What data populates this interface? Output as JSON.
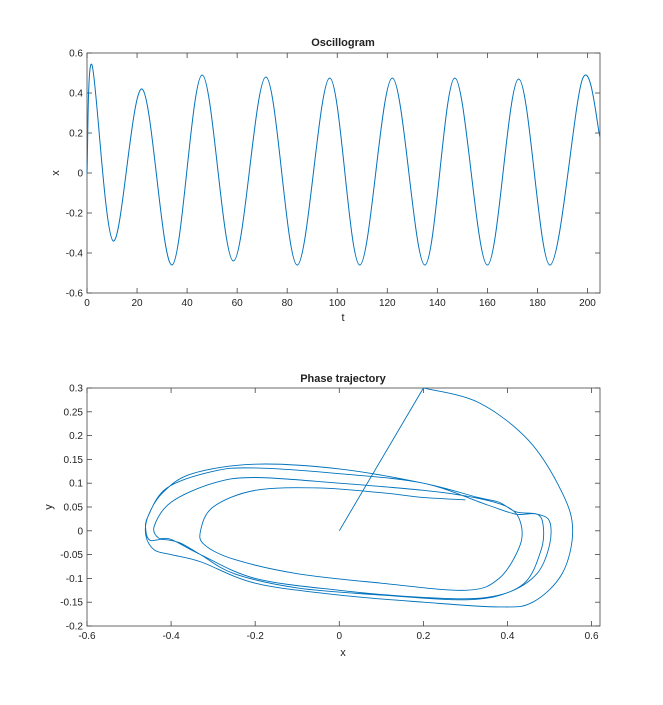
{
  "chart_data": [
    {
      "type": "line",
      "title": "Oscillogram",
      "xlabel": "t",
      "ylabel": "x",
      "xlim": [
        0,
        205
      ],
      "ylim": [
        -0.6,
        0.6
      ],
      "xticks": [
        0,
        20,
        40,
        60,
        80,
        100,
        120,
        140,
        160,
        180,
        200
      ],
      "yticks": [
        -0.6,
        -0.4,
        -0.2,
        0,
        0.2,
        0.4,
        0.6
      ],
      "grid": false,
      "color": "#0072bd",
      "x": [
        0,
        2,
        10.5,
        22,
        34,
        46,
        58.5,
        71.5,
        84,
        97,
        109,
        122,
        135,
        147,
        160,
        172.5,
        185,
        198,
        205
      ],
      "y": [
        0,
        0.54,
        -0.34,
        0.42,
        -0.46,
        0.49,
        -0.44,
        0.48,
        -0.46,
        0.475,
        -0.46,
        0.475,
        -0.46,
        0.475,
        -0.46,
        0.47,
        -0.46,
        0.47,
        0.18
      ]
    },
    {
      "type": "line",
      "title": "Phase trajectory",
      "xlabel": "x",
      "ylabel": "y",
      "xlim": [
        -0.6,
        0.62
      ],
      "ylim": [
        -0.2,
        0.3
      ],
      "xticks": [
        -0.6,
        -0.4,
        -0.2,
        0,
        0.2,
        0.4,
        0.6
      ],
      "yticks": [
        -0.2,
        -0.15,
        -0.1,
        -0.05,
        0,
        0.05,
        0.1,
        0.15,
        0.2,
        0.25,
        0.3
      ],
      "grid": false,
      "color": "#0072bd",
      "segments": [
        [
          [
            0,
            0
          ],
          [
            0.2,
            0.3
          ]
        ],
        [
          [
            0.2,
            0.3
          ],
          [
            0.33,
            0.27
          ],
          [
            0.45,
            0.19
          ],
          [
            0.53,
            0.08
          ],
          [
            0.555,
            0
          ],
          [
            0.53,
            -0.09
          ],
          [
            0.46,
            -0.15
          ],
          [
            0.38,
            -0.16
          ],
          [
            0.2,
            -0.15
          ],
          [
            0,
            -0.135
          ],
          [
            -0.2,
            -0.11
          ],
          [
            -0.33,
            -0.065
          ],
          [
            -0.4,
            -0.05
          ],
          [
            -0.44,
            -0.04
          ],
          [
            -0.46,
            -0.01
          ],
          [
            -0.455,
            0.03
          ],
          [
            -0.42,
            0.08
          ],
          [
            -0.35,
            0.12
          ],
          [
            -0.2,
            0.14
          ],
          [
            0,
            0.13
          ],
          [
            0.2,
            0.1
          ],
          [
            0.33,
            0.07
          ],
          [
            0.38,
            0.06
          ],
          [
            0.42,
            0.04
          ],
          [
            0.47,
            0.035
          ],
          [
            0.5,
            0.02
          ],
          [
            0.5,
            -0.03
          ],
          [
            0.47,
            -0.09
          ],
          [
            0.4,
            -0.13
          ],
          [
            0.3,
            -0.145
          ],
          [
            0.1,
            -0.135
          ],
          [
            -0.1,
            -0.12
          ],
          [
            -0.25,
            -0.09
          ],
          [
            -0.33,
            -0.05
          ],
          [
            -0.38,
            -0.025
          ],
          [
            -0.42,
            -0.018
          ],
          [
            -0.45,
            -0.02
          ],
          [
            -0.46,
            0
          ],
          [
            -0.455,
            0.03
          ],
          [
            -0.41,
            0.09
          ],
          [
            -0.3,
            0.125
          ],
          [
            -0.2,
            0.132
          ],
          [
            0,
            0.12
          ],
          [
            0.2,
            0.1
          ],
          [
            0.35,
            0.055
          ],
          [
            0.42,
            0.035
          ],
          [
            0.47,
            0.035
          ],
          [
            0.485,
            0.01
          ],
          [
            0.48,
            -0.04
          ],
          [
            0.44,
            -0.11
          ],
          [
            0.35,
            -0.14
          ],
          [
            0.2,
            -0.14
          ],
          [
            0,
            -0.125
          ],
          [
            -0.2,
            -0.1
          ],
          [
            -0.33,
            -0.05
          ],
          [
            -0.4,
            -0.018
          ],
          [
            -0.43,
            -0.015
          ],
          [
            -0.44,
            0.01
          ],
          [
            -0.4,
            0.06
          ],
          [
            -0.3,
            0.1
          ],
          [
            -0.2,
            0.112
          ],
          [
            0,
            0.1
          ],
          [
            0.2,
            0.085
          ],
          [
            0.32,
            0.07
          ],
          [
            0.4,
            0.05
          ],
          [
            0.43,
            0.02
          ],
          [
            0.43,
            -0.03
          ],
          [
            0.38,
            -0.1
          ],
          [
            0.3,
            -0.125
          ],
          [
            0.1,
            -0.11
          ],
          [
            -0.1,
            -0.09
          ],
          [
            -0.25,
            -0.06
          ],
          [
            -0.32,
            -0.03
          ],
          [
            -0.33,
            0
          ],
          [
            -0.3,
            0.05
          ],
          [
            -0.2,
            0.085
          ],
          [
            -0.05,
            0.09
          ],
          [
            0.1,
            0.08
          ],
          [
            0.2,
            0.07
          ],
          [
            0.3,
            0.065
          ]
        ]
      ]
    }
  ]
}
